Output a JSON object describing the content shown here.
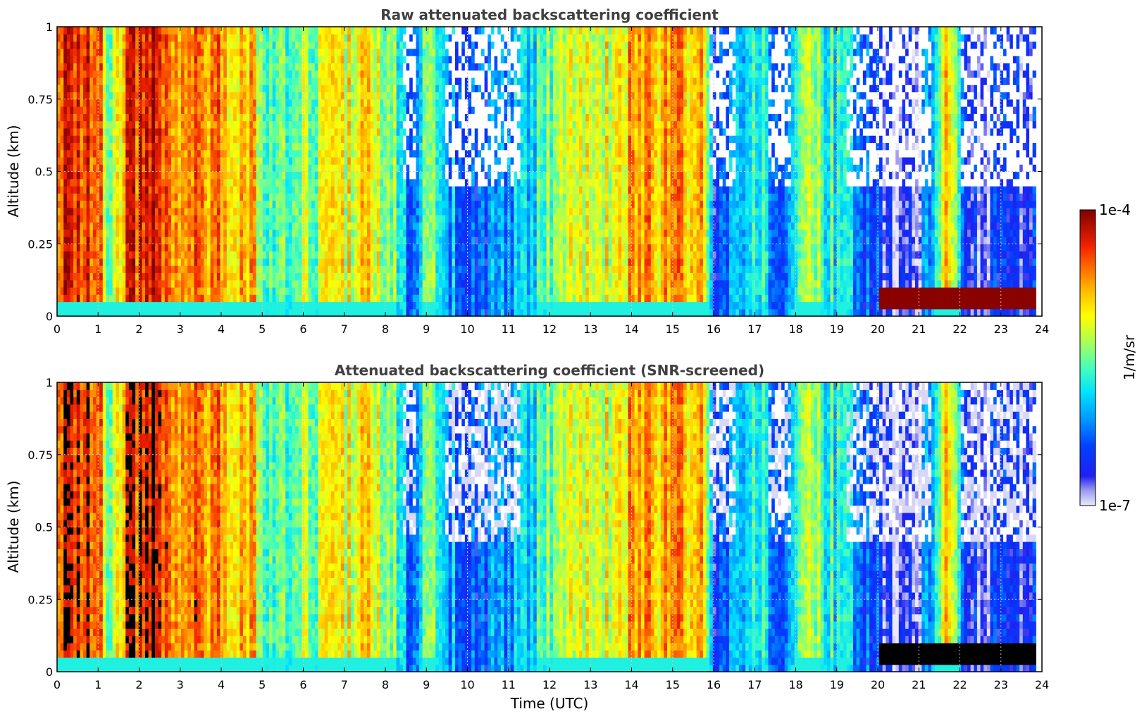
{
  "chart_data": [
    {
      "type": "heatmap",
      "title": "Raw attenuated backscattering coefficient",
      "xlabel": "",
      "ylabel": "Altitude (km)",
      "xlim": [
        0,
        24
      ],
      "ylim": [
        0,
        1
      ],
      "x_ticks": [
        "0",
        "1",
        "2",
        "3",
        "4",
        "5",
        "6",
        "7",
        "8",
        "9",
        "10",
        "11",
        "12",
        "13",
        "14",
        "15",
        "16",
        "17",
        "18",
        "19",
        "20",
        "21",
        "22",
        "23",
        "24"
      ],
      "y_ticks": [
        "0",
        "0.25",
        "0.5",
        "0.75",
        "1"
      ],
      "grid": true,
      "colormap": "jet",
      "color_scale": "log",
      "screened": false
    },
    {
      "type": "heatmap",
      "title": "Attenuated backscattering coefficient (SNR-screened)",
      "xlabel": "Time (UTC)",
      "ylabel": "Altitude (km)",
      "xlim": [
        0,
        24
      ],
      "ylim": [
        0,
        1
      ],
      "x_ticks": [
        "0",
        "1",
        "2",
        "3",
        "4",
        "5",
        "6",
        "7",
        "8",
        "9",
        "10",
        "11",
        "12",
        "13",
        "14",
        "15",
        "16",
        "17",
        "18",
        "19",
        "20",
        "21",
        "22",
        "23",
        "24"
      ],
      "y_ticks": [
        "0",
        "0.25",
        "0.5",
        "0.75",
        "1"
      ],
      "grid": true,
      "colormap": "jet",
      "color_scale": "log",
      "screened": true
    }
  ],
  "colorbar": {
    "max_label": "1e-4",
    "min_label": "1e-7",
    "unit_label": "1/m/sr"
  },
  "colors": {
    "title": "#404040",
    "screened_out": "#ffffff",
    "saturated": "#000000"
  }
}
